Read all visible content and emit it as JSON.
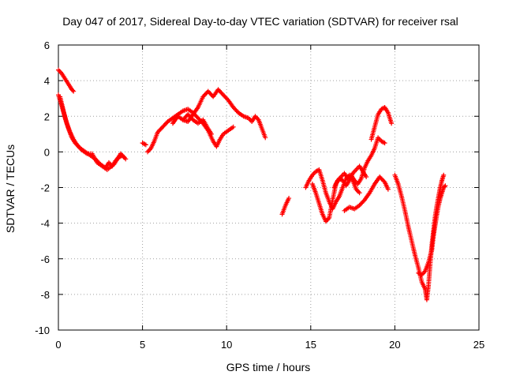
{
  "chart_data": {
    "type": "scatter",
    "title": "Day 047 of 2017, Sidereal Day-to-day VTEC variation (SDTVAR) for receiver rsal",
    "xlabel": "GPS time / hours",
    "ylabel": "SDTVAR / TECUs",
    "xlim": [
      0,
      25
    ],
    "ylim": [
      -10,
      6
    ],
    "xticks": [
      0,
      5,
      10,
      15,
      20,
      25
    ],
    "yticks": [
      -10,
      -8,
      -6,
      -4,
      -2,
      0,
      2,
      4,
      6
    ],
    "grid": true,
    "legend": "none",
    "marker": "+",
    "marker_color": "#ff0000",
    "series": [
      {
        "segments": [
          [
            [
              0.0,
              4.6
            ],
            [
              0.2,
              4.4
            ],
            [
              0.4,
              4.1
            ],
            [
              0.6,
              3.8
            ],
            [
              0.8,
              3.5
            ],
            [
              0.9,
              3.4
            ]
          ],
          [
            [
              0.0,
              3.2
            ],
            [
              0.2,
              2.6
            ],
            [
              0.4,
              1.9
            ],
            [
              0.6,
              1.3
            ],
            [
              0.8,
              0.8
            ],
            [
              1.0,
              0.5
            ],
            [
              1.3,
              0.2
            ],
            [
              1.6,
              0.0
            ],
            [
              1.9,
              -0.2
            ],
            [
              2.2,
              -0.4
            ],
            [
              2.5,
              -0.7
            ],
            [
              2.8,
              -0.9
            ],
            [
              3.0,
              -0.6
            ],
            [
              3.2,
              -0.8
            ],
            [
              3.4,
              -0.5
            ],
            [
              3.6,
              -0.3
            ],
            [
              3.8,
              -0.2
            ],
            [
              4.0,
              -0.4
            ]
          ],
          [
            [
              0.1,
              3.1
            ],
            [
              0.3,
              2.3
            ],
            [
              0.5,
              1.6
            ],
            [
              0.7,
              1.1
            ],
            [
              0.9,
              0.7
            ],
            [
              1.1,
              0.4
            ],
            [
              1.4,
              0.1
            ],
            [
              1.7,
              -0.1
            ],
            [
              2.0,
              -0.1
            ],
            [
              2.3,
              -0.6
            ],
            [
              2.6,
              -0.8
            ],
            [
              2.9,
              -1.0
            ],
            [
              3.3,
              -0.7
            ],
            [
              3.7,
              -0.1
            ],
            [
              3.9,
              -0.3
            ]
          ],
          [
            [
              5.0,
              0.5
            ],
            [
              5.2,
              0.4
            ]
          ],
          [
            [
              5.3,
              0.0
            ],
            [
              5.5,
              0.2
            ],
            [
              5.7,
              0.6
            ],
            [
              5.9,
              1.1
            ],
            [
              6.2,
              1.4
            ],
            [
              6.5,
              1.7
            ],
            [
              6.8,
              1.9
            ],
            [
              7.1,
              2.1
            ],
            [
              7.4,
              2.3
            ],
            [
              7.7,
              2.4
            ],
            [
              8.0,
              2.2
            ],
            [
              8.3,
              1.9
            ],
            [
              8.6,
              1.6
            ],
            [
              8.9,
              1.2
            ],
            [
              9.2,
              0.6
            ],
            [
              9.4,
              0.3
            ],
            [
              9.6,
              0.7
            ],
            [
              9.8,
              1.0
            ],
            [
              10.1,
              1.2
            ],
            [
              10.4,
              1.4
            ]
          ],
          [
            [
              6.8,
              1.6
            ],
            [
              7.1,
              2.0
            ],
            [
              7.4,
              1.8
            ],
            [
              7.7,
              1.7
            ],
            [
              8.0,
              2.1
            ],
            [
              8.3,
              2.5
            ],
            [
              8.6,
              3.1
            ],
            [
              8.9,
              3.4
            ],
            [
              9.2,
              3.1
            ],
            [
              9.5,
              3.5
            ],
            [
              9.8,
              3.2
            ],
            [
              10.1,
              2.9
            ],
            [
              10.4,
              2.5
            ],
            [
              10.7,
              2.2
            ],
            [
              11.0,
              2.0
            ],
            [
              11.3,
              1.9
            ],
            [
              11.5,
              1.7
            ],
            [
              11.7,
              2.0
            ],
            [
              11.9,
              1.8
            ],
            [
              12.1,
              1.3
            ],
            [
              12.3,
              0.8
            ]
          ],
          [
            [
              7.4,
              1.8
            ],
            [
              7.7,
              2.1
            ],
            [
              8.0,
              1.8
            ],
            [
              8.3,
              1.6
            ],
            [
              8.6,
              1.8
            ],
            [
              8.9,
              1.3
            ],
            [
              9.1,
              1.0
            ]
          ],
          [
            [
              13.3,
              -3.5
            ],
            [
              13.5,
              -3.0
            ],
            [
              13.7,
              -2.6
            ]
          ],
          [
            [
              14.7,
              -2.0
            ],
            [
              14.9,
              -1.6
            ],
            [
              15.1,
              -1.3
            ],
            [
              15.3,
              -1.1
            ],
            [
              15.5,
              -1.0
            ],
            [
              15.7,
              -1.6
            ],
            [
              15.9,
              -2.3
            ],
            [
              16.1,
              -2.8
            ],
            [
              16.3,
              -3.2
            ],
            [
              16.5,
              -2.8
            ],
            [
              16.7,
              -2.5
            ],
            [
              16.9,
              -2.0
            ],
            [
              17.1,
              -1.5
            ],
            [
              17.3,
              -1.3
            ],
            [
              17.5,
              -1.6
            ],
            [
              17.7,
              -2.1
            ],
            [
              17.9,
              -2.3
            ]
          ],
          [
            [
              15.1,
              -1.8
            ],
            [
              15.3,
              -2.3
            ],
            [
              15.5,
              -2.9
            ],
            [
              15.7,
              -3.5
            ],
            [
              15.9,
              -3.9
            ],
            [
              16.1,
              -3.7
            ],
            [
              16.3,
              -2.7
            ],
            [
              16.5,
              -1.8
            ],
            [
              16.7,
              -1.5
            ],
            [
              16.9,
              -1.6
            ],
            [
              17.1,
              -1.9
            ],
            [
              17.3,
              -1.6
            ],
            [
              17.5,
              -1.2
            ],
            [
              17.7,
              -1.0
            ],
            [
              17.9,
              -0.8
            ],
            [
              18.1,
              -1.1
            ],
            [
              18.3,
              -1.4
            ]
          ],
          [
            [
              16.4,
              -2.0
            ],
            [
              16.6,
              -1.6
            ],
            [
              16.8,
              -1.4
            ],
            [
              17.0,
              -1.2
            ],
            [
              17.2,
              -1.5
            ],
            [
              17.4,
              -1.3
            ],
            [
              17.6,
              -1.6
            ],
            [
              17.8,
              -1.8
            ],
            [
              18.0,
              -1.5
            ],
            [
              18.2,
              -0.9
            ],
            [
              18.4,
              -0.5
            ],
            [
              18.6,
              -0.2
            ],
            [
              18.8,
              0.2
            ],
            [
              19.0,
              0.8
            ],
            [
              19.2,
              0.6
            ],
            [
              19.4,
              0.5
            ]
          ],
          [
            [
              18.6,
              0.7
            ],
            [
              18.8,
              1.4
            ],
            [
              19.0,
              2.1
            ],
            [
              19.2,
              2.4
            ],
            [
              19.4,
              2.5
            ],
            [
              19.6,
              2.2
            ],
            [
              19.8,
              1.6
            ]
          ],
          [
            [
              17.0,
              -3.3
            ],
            [
              17.3,
              -3.1
            ],
            [
              17.6,
              -3.2
            ],
            [
              17.9,
              -3.0
            ],
            [
              18.2,
              -2.7
            ],
            [
              18.5,
              -2.3
            ],
            [
              18.8,
              -1.8
            ],
            [
              19.1,
              -1.4
            ],
            [
              19.4,
              -1.7
            ],
            [
              19.6,
              -2.1
            ]
          ],
          [
            [
              20.0,
              -1.3
            ],
            [
              20.2,
              -1.8
            ],
            [
              20.4,
              -2.5
            ],
            [
              20.6,
              -3.3
            ],
            [
              20.8,
              -4.2
            ],
            [
              21.0,
              -5.0
            ],
            [
              21.2,
              -5.8
            ],
            [
              21.4,
              -6.5
            ],
            [
              21.6,
              -7.3
            ],
            [
              21.8,
              -7.7
            ],
            [
              21.9,
              -8.3
            ],
            [
              22.0,
              -7.5
            ],
            [
              22.1,
              -6.3
            ],
            [
              22.2,
              -5.2
            ],
            [
              22.3,
              -4.4
            ],
            [
              22.4,
              -3.6
            ],
            [
              22.5,
              -3.0
            ],
            [
              22.6,
              -2.5
            ],
            [
              22.7,
              -2.0
            ],
            [
              22.8,
              -1.6
            ],
            [
              22.9,
              -1.3
            ]
          ],
          [
            [
              21.4,
              -6.8
            ],
            [
              21.6,
              -6.9
            ],
            [
              21.8,
              -6.7
            ],
            [
              22.0,
              -6.2
            ],
            [
              22.2,
              -5.5
            ],
            [
              22.3,
              -4.7
            ],
            [
              22.4,
              -4.1
            ],
            [
              22.5,
              -3.5
            ],
            [
              22.6,
              -3.0
            ],
            [
              22.7,
              -2.6
            ],
            [
              22.8,
              -2.3
            ],
            [
              22.9,
              -2.0
            ],
            [
              23.0,
              -1.9
            ]
          ]
        ]
      }
    ]
  }
}
